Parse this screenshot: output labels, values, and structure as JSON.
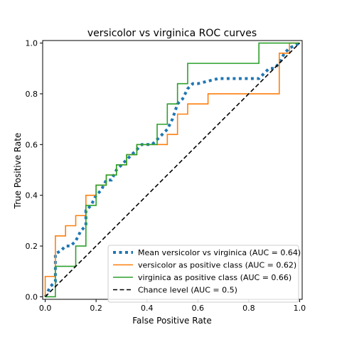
{
  "chart_data": {
    "type": "line",
    "title": "versicolor vs virginica ROC curves",
    "xlabel": "False Positive Rate",
    "ylabel": "True Positive Rate",
    "xlim": [
      -0.01,
      1.01
    ],
    "ylim": [
      -0.01,
      1.01
    ],
    "xticks": [
      "0.0",
      "0.2",
      "0.4",
      "0.6",
      "0.8",
      "1.0"
    ],
    "yticks": [
      "0.0",
      "0.2",
      "0.4",
      "0.6",
      "0.8",
      "1.0"
    ],
    "legend_position": "lower-right",
    "series": [
      {
        "name": "Mean versicolor vs virginica (AUC = 0.64)",
        "color": "#1f77b4",
        "style": "dotted",
        "x": [
          0.0,
          0.02,
          0.04,
          0.04,
          0.04,
          0.04,
          0.06,
          0.08,
          0.1,
          0.12,
          0.14,
          0.16,
          0.16,
          0.18,
          0.2,
          0.22,
          0.24,
          0.26,
          0.28,
          0.3,
          0.32,
          0.34,
          0.36,
          0.38,
          0.4,
          0.42,
          0.44,
          0.46,
          0.48,
          0.5,
          0.52,
          0.54,
          0.56,
          0.58,
          0.6,
          0.64,
          0.68,
          0.72,
          0.76,
          0.8,
          0.84,
          0.86,
          0.88,
          0.9,
          0.92,
          0.94,
          0.96,
          0.98,
          1.0
        ],
        "y": [
          0.0,
          0.04,
          0.06,
          0.1,
          0.14,
          0.17,
          0.18,
          0.2,
          0.2,
          0.22,
          0.26,
          0.28,
          0.34,
          0.36,
          0.4,
          0.42,
          0.46,
          0.46,
          0.5,
          0.52,
          0.54,
          0.56,
          0.58,
          0.6,
          0.6,
          0.6,
          0.62,
          0.64,
          0.66,
          0.7,
          0.76,
          0.78,
          0.82,
          0.84,
          0.84,
          0.85,
          0.86,
          0.86,
          0.86,
          0.86,
          0.86,
          0.88,
          0.9,
          0.9,
          0.92,
          0.96,
          0.98,
          0.99,
          1.0
        ]
      },
      {
        "name": "versicolor as positive class (AUC = 0.62)",
        "color": "#ff7f0e",
        "style": "solid",
        "x": [
          0.0,
          0.0,
          0.04,
          0.04,
          0.08,
          0.08,
          0.12,
          0.12,
          0.16,
          0.16,
          0.2,
          0.2,
          0.24,
          0.24,
          0.28,
          0.28,
          0.32,
          0.32,
          0.36,
          0.36,
          0.48,
          0.48,
          0.52,
          0.52,
          0.56,
          0.56,
          0.64,
          0.64,
          0.92,
          0.92,
          0.96,
          0.96,
          1.0
        ],
        "y": [
          0.0,
          0.08,
          0.08,
          0.24,
          0.24,
          0.28,
          0.28,
          0.32,
          0.32,
          0.4,
          0.4,
          0.44,
          0.44,
          0.48,
          0.48,
          0.52,
          0.52,
          0.56,
          0.56,
          0.6,
          0.6,
          0.64,
          0.64,
          0.72,
          0.72,
          0.76,
          0.76,
          0.8,
          0.8,
          0.96,
          0.96,
          1.0,
          1.0
        ]
      },
      {
        "name": "virginica as positive class (AUC = 0.66)",
        "color": "#2ca02c",
        "style": "solid",
        "x": [
          0.0,
          0.04,
          0.04,
          0.12,
          0.12,
          0.16,
          0.16,
          0.2,
          0.2,
          0.24,
          0.24,
          0.28,
          0.28,
          0.32,
          0.32,
          0.36,
          0.36,
          0.4,
          0.4,
          0.44,
          0.44,
          0.48,
          0.48,
          0.52,
          0.52,
          0.56,
          0.56,
          0.84,
          0.84,
          0.96,
          0.96,
          1.0
        ],
        "y": [
          0.0,
          0.0,
          0.12,
          0.12,
          0.2,
          0.2,
          0.36,
          0.36,
          0.44,
          0.44,
          0.48,
          0.48,
          0.52,
          0.52,
          0.56,
          0.56,
          0.6,
          0.6,
          0.6,
          0.6,
          0.68,
          0.68,
          0.76,
          0.76,
          0.84,
          0.84,
          0.92,
          0.92,
          1.0,
          1.0,
          1.0,
          1.0
        ]
      },
      {
        "name": "Chance level (AUC = 0.5)",
        "color": "#000000",
        "style": "dashed",
        "x": [
          0.0,
          1.0
        ],
        "y": [
          0.0,
          1.0
        ]
      }
    ]
  }
}
